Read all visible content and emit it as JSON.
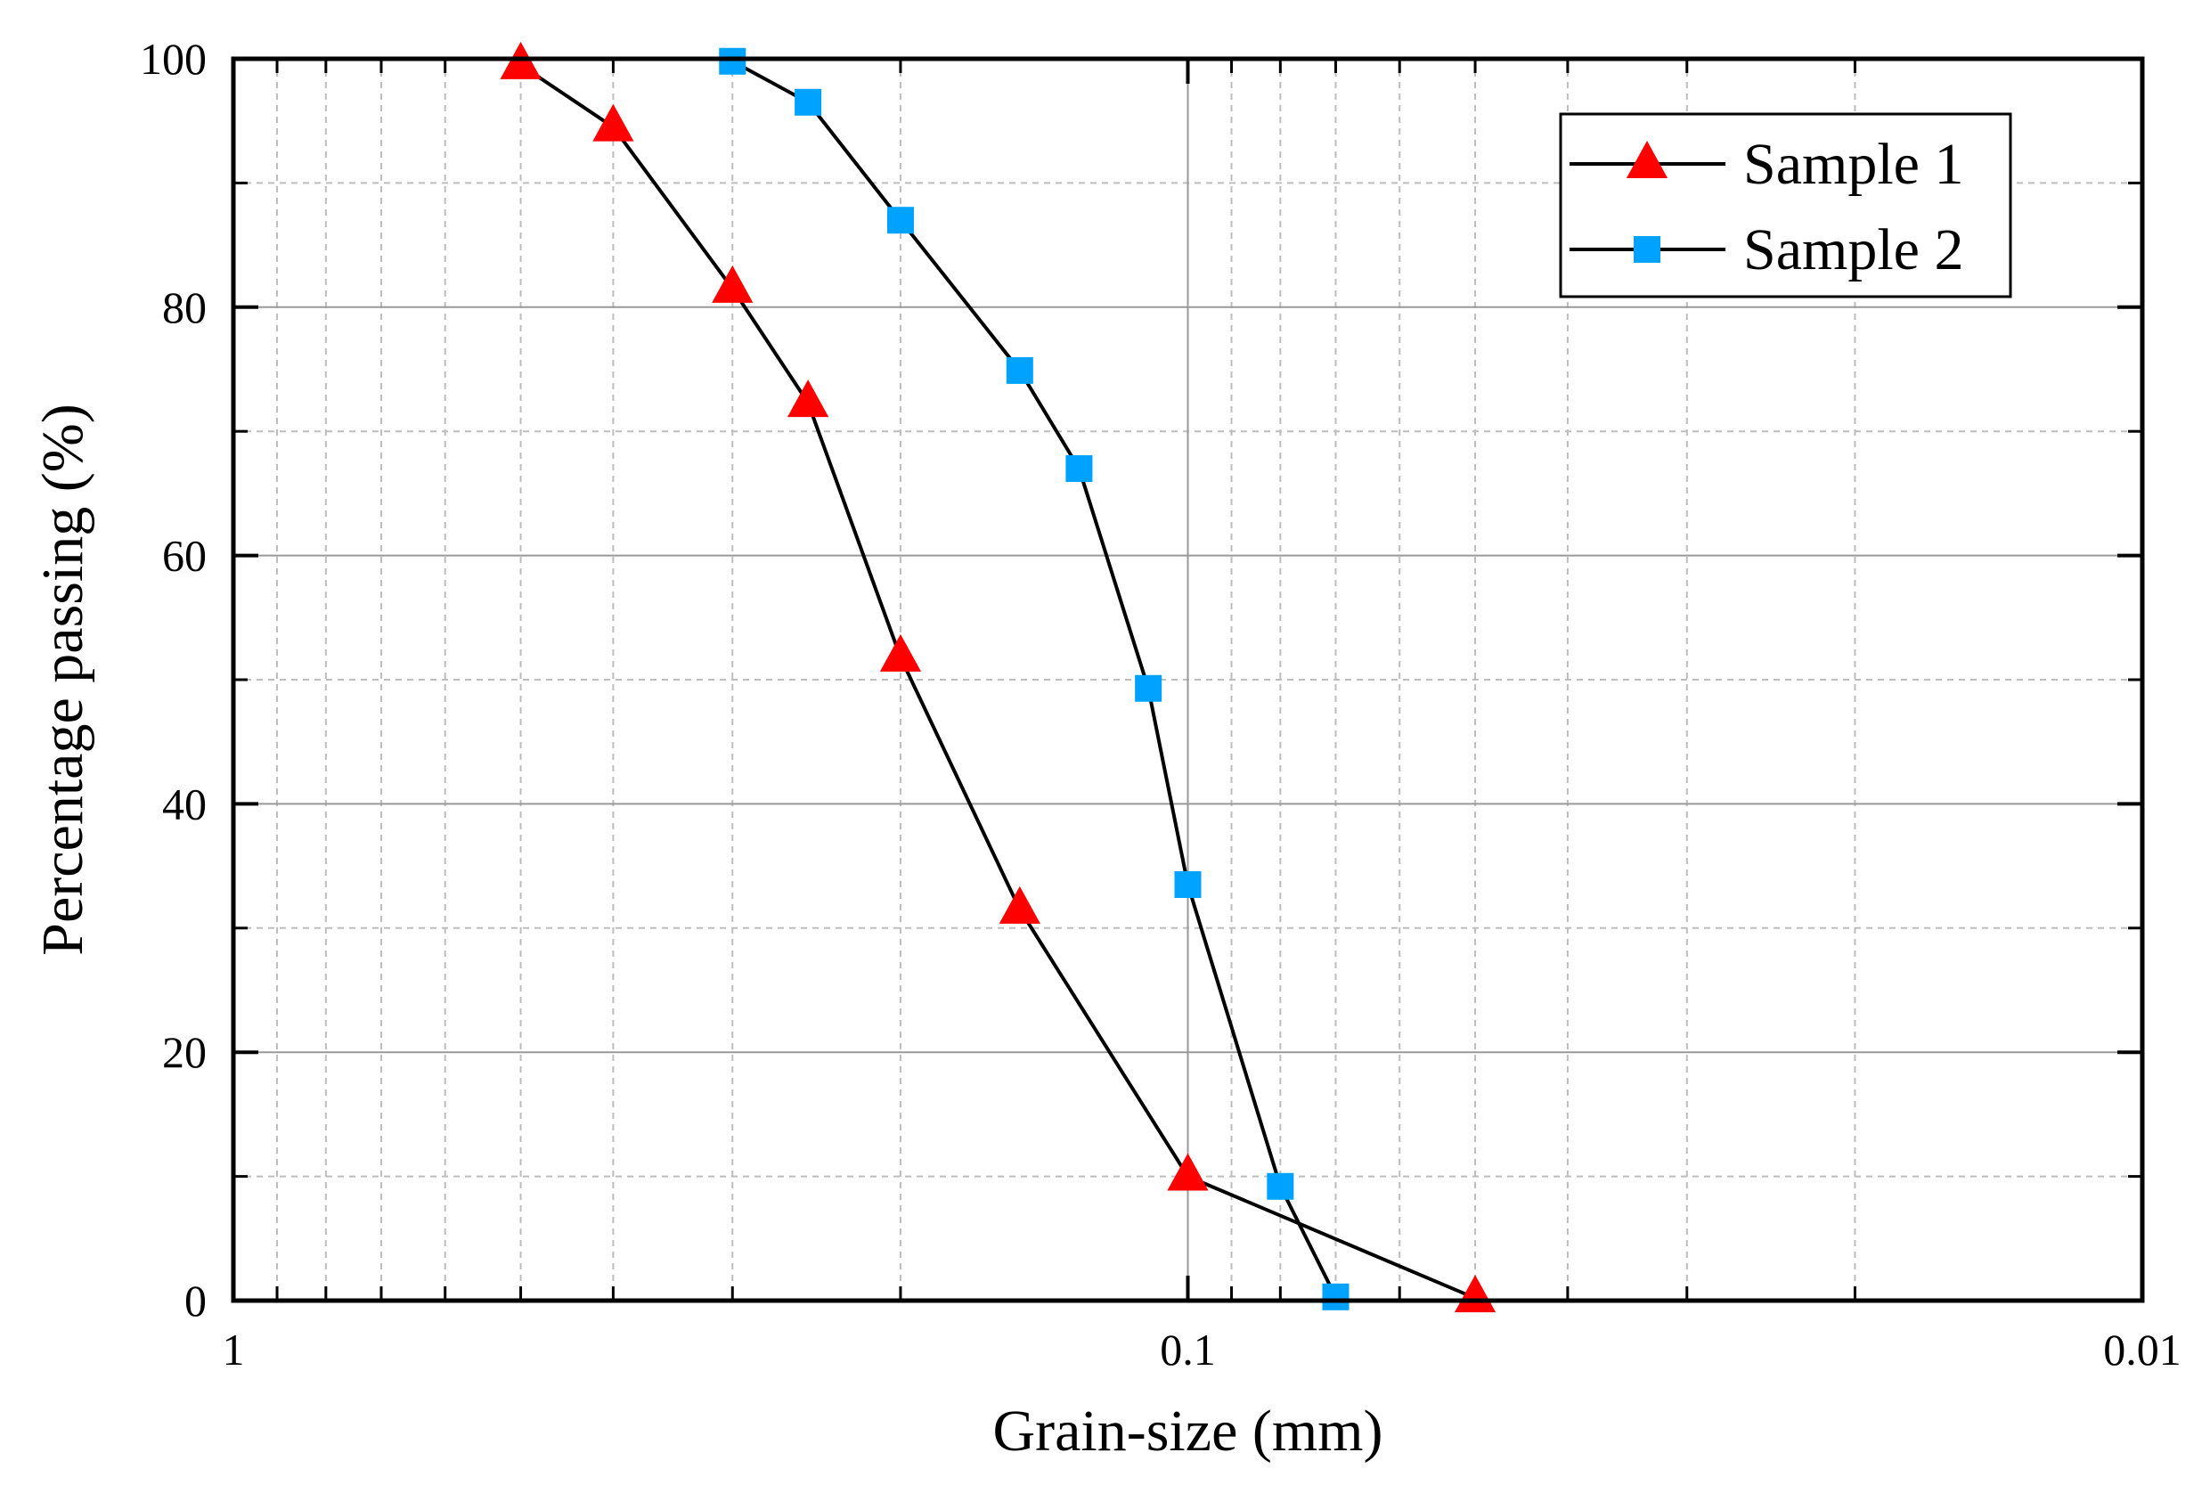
{
  "chart_data": {
    "type": "line",
    "xlabel": "Grain-size (mm)",
    "ylabel": "Percentage passing (%)",
    "x_scale": "log",
    "x_reversed": true,
    "xlim": [
      1,
      0.01
    ],
    "ylim": [
      0,
      100
    ],
    "x_ticks": [
      1,
      0.1,
      0.01
    ],
    "x_tick_labels": [
      "1",
      "0.1",
      "0.01"
    ],
    "y_ticks": [
      0,
      20,
      40,
      60,
      80,
      100
    ],
    "y_tick_labels": [
      "0",
      "20",
      "40",
      "60",
      "80",
      "100"
    ],
    "grid": true,
    "legend_position": "top-right",
    "series": [
      {
        "name": "Sample 1",
        "marker": "triangle",
        "color": "#ff0000",
        "x": [
          0.5,
          0.4,
          0.3,
          0.25,
          0.2,
          0.15,
          0.1,
          0.05
        ],
        "y": [
          99.5,
          94.5,
          81.5,
          72.3,
          51.8,
          31.5,
          10.0,
          0.2
        ]
      },
      {
        "name": "Sample 2",
        "marker": "square",
        "color": "#00a2ff",
        "x": [
          0.3,
          0.25,
          0.2,
          0.15,
          0.13,
          0.11,
          0.1,
          0.08,
          0.07
        ],
        "y": [
          99.8,
          96.5,
          87.0,
          74.9,
          67.0,
          49.3,
          33.5,
          9.2,
          0.3
        ]
      }
    ]
  }
}
